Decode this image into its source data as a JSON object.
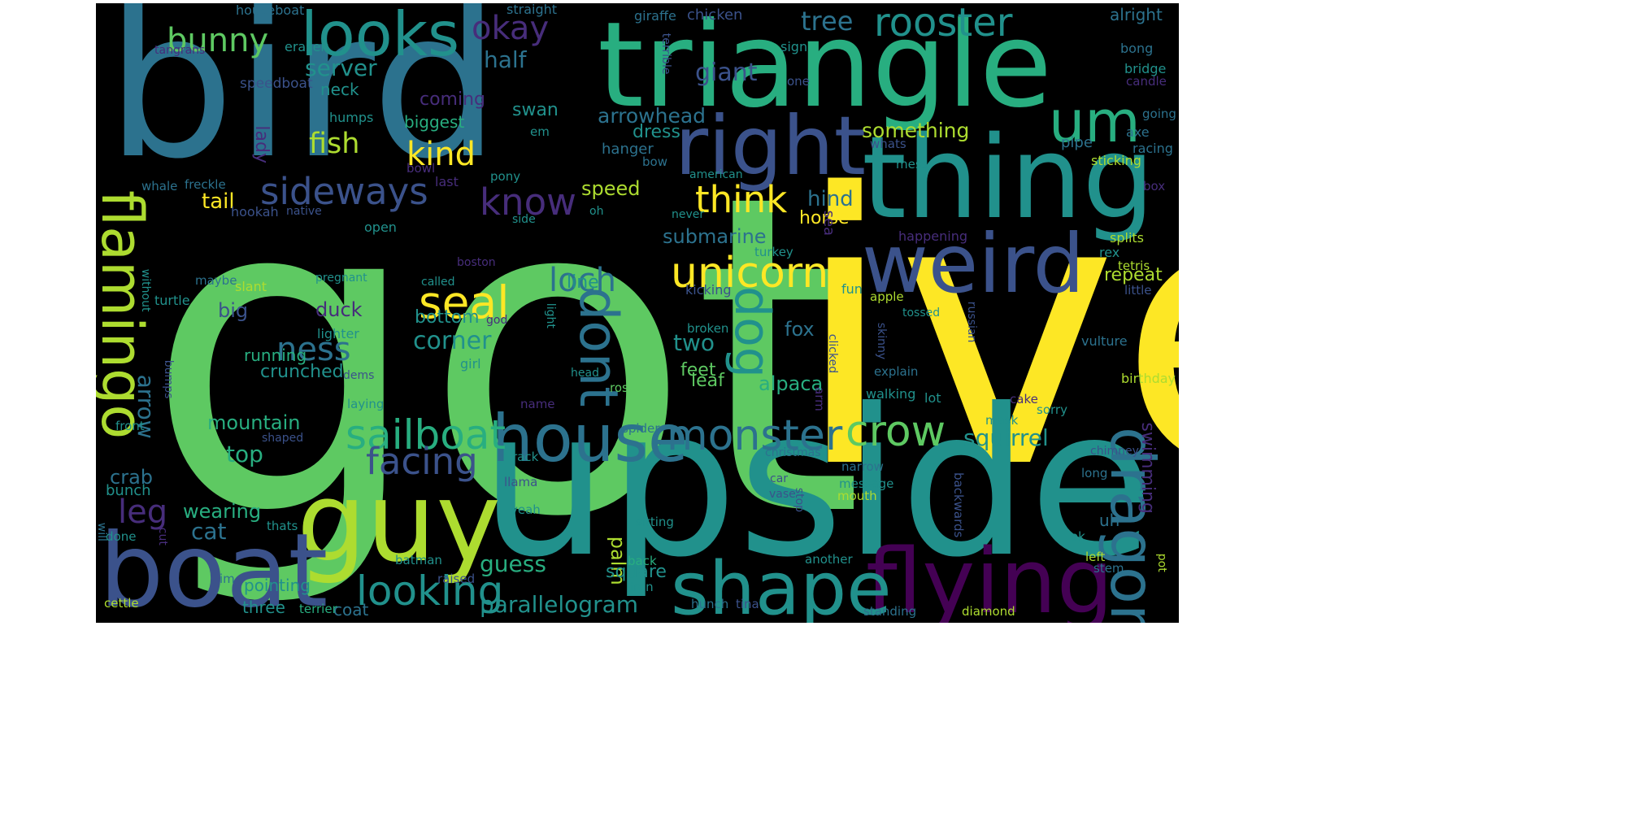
{
  "palette": [
    "#440154",
    "#472d7b",
    "#3b528b",
    "#2c728e",
    "#21918c",
    "#28ae80",
    "#5ec962",
    "#addc30",
    "#fde725"
  ],
  "words": [
    {
      "text": "got",
      "color": "#5ec962"
    },
    {
      "text": "ive",
      "color": "#fde725"
    },
    {
      "text": "bird",
      "color": "#2c728e"
    },
    {
      "text": "upside",
      "color": "#21918c"
    },
    {
      "text": "triangle",
      "color": "#28ae80"
    },
    {
      "text": "thing",
      "color": "#21918c"
    },
    {
      "text": "guy",
      "color": "#addc30"
    },
    {
      "text": "boat",
      "color": "#3b528b"
    },
    {
      "text": "weird",
      "color": "#3b528b"
    },
    {
      "text": "right",
      "color": "#3b528b"
    },
    {
      "text": "flying",
      "color": "#440154"
    },
    {
      "text": "shape",
      "color": "#21918c"
    },
    {
      "text": "dragon",
      "color": "#2c728e"
    },
    {
      "text": "house",
      "color": "#2c728e"
    },
    {
      "text": "looks",
      "color": "#21918c"
    },
    {
      "text": "um",
      "color": "#28ae80"
    },
    {
      "text": "flamingo",
      "color": "#addc30"
    },
    {
      "text": "dont",
      "color": "#2c728e"
    },
    {
      "text": "dog",
      "color": "#21918c"
    },
    {
      "text": "rooster",
      "color": "#21918c"
    },
    {
      "text": "seal",
      "color": "#fde725"
    },
    {
      "text": "unicorn",
      "color": "#fde725"
    },
    {
      "text": "monster",
      "color": "#2c728e"
    },
    {
      "text": "crow",
      "color": "#5ec962"
    },
    {
      "text": "sailboat",
      "color": "#28ae80"
    },
    {
      "text": "looking",
      "color": "#21918c"
    },
    {
      "text": "sideways",
      "color": "#3b528b"
    },
    {
      "text": "think",
      "color": "#fde725"
    },
    {
      "text": "know",
      "color": "#472d7b"
    },
    {
      "text": "kind",
      "color": "#fde725"
    },
    {
      "text": "bunny",
      "color": "#5ec962"
    },
    {
      "text": "okay",
      "color": "#472d7b"
    },
    {
      "text": "facing",
      "color": "#3b528b"
    },
    {
      "text": "loch",
      "color": "#2c728e"
    },
    {
      "text": "ness",
      "color": "#2c728e"
    },
    {
      "text": "leg",
      "color": "#472d7b"
    },
    {
      "text": "fish",
      "color": "#addc30"
    },
    {
      "text": "parallelogram",
      "color": "#21918c"
    },
    {
      "text": "squirrel",
      "color": "#21918c"
    },
    {
      "text": "tree",
      "color": "#2c728e"
    },
    {
      "text": "corner",
      "color": "#21918c"
    },
    {
      "text": "something",
      "color": "#addc30"
    },
    {
      "text": "arrowhead",
      "color": "#2c728e"
    },
    {
      "text": "giant",
      "color": "#3b528b"
    },
    {
      "text": "submarine",
      "color": "#2c728e"
    },
    {
      "text": "server",
      "color": "#21918c"
    },
    {
      "text": "half",
      "color": "#2c728e"
    },
    {
      "text": "tail",
      "color": "#fde725"
    },
    {
      "text": "arrow",
      "color": "#2c728e"
    },
    {
      "text": "speed",
      "color": "#addc30"
    },
    {
      "text": "hind",
      "color": "#2c728e"
    },
    {
      "text": "fox",
      "color": "#2c728e"
    },
    {
      "text": "two",
      "color": "#21918c"
    },
    {
      "text": "duck",
      "color": "#472d7b"
    },
    {
      "text": "big",
      "color": "#3b528b"
    },
    {
      "text": "guess",
      "color": "#28ae80"
    },
    {
      "text": "mountain",
      "color": "#28ae80"
    },
    {
      "text": "crab",
      "color": "#2c728e"
    },
    {
      "text": "cat",
      "color": "#2c728e"
    },
    {
      "text": "top",
      "color": "#28ae80"
    },
    {
      "text": "alpaca",
      "color": "#28ae80"
    },
    {
      "text": "palm",
      "color": "#addc30"
    },
    {
      "text": "swimming",
      "color": "#472d7b"
    },
    {
      "text": "coming",
      "color": "#472d7b"
    },
    {
      "text": "swan",
      "color": "#21918c"
    },
    {
      "text": "line",
      "color": "#21918c"
    },
    {
      "text": "repeat",
      "color": "#addc30"
    },
    {
      "text": "horse",
      "color": "#fde725"
    },
    {
      "text": "dress",
      "color": "#21918c"
    },
    {
      "text": "neck",
      "color": "#21918c"
    },
    {
      "text": "biggest",
      "color": "#28ae80"
    },
    {
      "text": "lady",
      "color": "#472d7b"
    },
    {
      "text": "feet",
      "color": "#5ec962"
    },
    {
      "text": "leaf",
      "color": "#5ec962"
    },
    {
      "text": "square",
      "color": "#21918c"
    },
    {
      "text": "running",
      "color": "#28ae80"
    },
    {
      "text": "crunched",
      "color": "#21918c"
    },
    {
      "text": "bottom",
      "color": "#21918c"
    },
    {
      "text": "wearing",
      "color": "#28ae80"
    },
    {
      "text": "pointing",
      "color": "#21918c"
    },
    {
      "text": "three",
      "color": "#21918c"
    },
    {
      "text": "coat",
      "color": "#2c728e"
    },
    {
      "text": "bunch",
      "color": "#21918c"
    },
    {
      "text": "uh",
      "color": "#2c728e"
    },
    {
      "text": "hanger",
      "color": "#2c728e"
    },
    {
      "text": "pipe",
      "color": "#2c728e"
    },
    {
      "text": "sea",
      "color": "#472d7b"
    },
    {
      "text": "chicken",
      "color": "#3b528b"
    },
    {
      "text": "alright",
      "color": "#2c728e"
    },
    {
      "text": "houseboat",
      "color": "#2c728e"
    },
    {
      "text": "straight",
      "color": "#2c728e"
    },
    {
      "text": "giraffe",
      "color": "#2c728e"
    },
    {
      "text": "tangrans",
      "color": "#472d7b"
    },
    {
      "text": "eraser",
      "color": "#21918c"
    },
    {
      "text": "sign",
      "color": "#21918c"
    },
    {
      "text": "bong",
      "color": "#2c728e"
    },
    {
      "text": "bridge",
      "color": "#21918c"
    },
    {
      "text": "candle",
      "color": "#472d7b"
    },
    {
      "text": "speedboat",
      "color": "#3b528b"
    },
    {
      "text": "terrible",
      "color": "#3b528b"
    },
    {
      "text": "one",
      "color": "#3b528b"
    },
    {
      "text": "going",
      "color": "#2c728e"
    },
    {
      "text": "humps",
      "color": "#21918c"
    },
    {
      "text": "em",
      "color": "#21918c"
    },
    {
      "text": "axe",
      "color": "#2c728e"
    },
    {
      "text": "whats",
      "color": "#3b528b"
    },
    {
      "text": "racing",
      "color": "#2c728e"
    },
    {
      "text": "bow",
      "color": "#2c728e"
    },
    {
      "text": "mess",
      "color": "#21918c"
    },
    {
      "text": "sticking",
      "color": "#addc30"
    },
    {
      "text": "bowl",
      "color": "#472d7b"
    },
    {
      "text": "american",
      "color": "#21918c"
    },
    {
      "text": "box",
      "color": "#472d7b"
    },
    {
      "text": "freckle",
      "color": "#2c728e"
    },
    {
      "text": "whale",
      "color": "#2c728e"
    },
    {
      "text": "last",
      "color": "#472d7b"
    },
    {
      "text": "pony",
      "color": "#21918c"
    },
    {
      "text": "hookah",
      "color": "#3b528b"
    },
    {
      "text": "native",
      "color": "#3b528b"
    },
    {
      "text": "side",
      "color": "#21918c"
    },
    {
      "text": "oh",
      "color": "#21918c"
    },
    {
      "text": "never",
      "color": "#21918c"
    },
    {
      "text": "open",
      "color": "#21918c"
    },
    {
      "text": "happening",
      "color": "#472d7b"
    },
    {
      "text": "splits",
      "color": "#addc30"
    },
    {
      "text": "turkey",
      "color": "#21918c"
    },
    {
      "text": "rex",
      "color": "#21918c"
    },
    {
      "text": "boston",
      "color": "#472d7b"
    },
    {
      "text": "tetris",
      "color": "#addc30"
    },
    {
      "text": "maybe",
      "color": "#2c728e"
    },
    {
      "text": "pregnant",
      "color": "#21918c"
    },
    {
      "text": "slant",
      "color": "#addc30"
    },
    {
      "text": "called",
      "color": "#21918c"
    },
    {
      "text": "kicking",
      "color": "#3b528b"
    },
    {
      "text": "fun",
      "color": "#21918c"
    },
    {
      "text": "little",
      "color": "#3b528b"
    },
    {
      "text": "apple",
      "color": "#addc30"
    },
    {
      "text": "without",
      "color": "#21918c"
    },
    {
      "text": "tossed",
      "color": "#21918c"
    },
    {
      "text": "russian",
      "color": "#3b528b"
    },
    {
      "text": "light",
      "color": "#21918c"
    },
    {
      "text": "turtle",
      "color": "#21918c"
    },
    {
      "text": "god",
      "color": "#472d7b"
    },
    {
      "text": "lighter",
      "color": "#21918c"
    },
    {
      "text": "broken",
      "color": "#21918c"
    },
    {
      "text": "vulture",
      "color": "#2c728e"
    },
    {
      "text": "skinny",
      "color": "#3b528b"
    },
    {
      "text": "clicked",
      "color": "#3b528b"
    },
    {
      "text": "bumps",
      "color": "#3b528b"
    },
    {
      "text": "girl",
      "color": "#21918c"
    },
    {
      "text": "head",
      "color": "#21918c"
    },
    {
      "text": "explain",
      "color": "#2c728e"
    },
    {
      "text": "birthday",
      "color": "#addc30"
    },
    {
      "text": "dems",
      "color": "#3b528b"
    },
    {
      "text": "rose",
      "color": "#5ec962"
    },
    {
      "text": "arm",
      "color": "#472d7b"
    },
    {
      "text": "walking",
      "color": "#21918c"
    },
    {
      "text": "lot",
      "color": "#21918c"
    },
    {
      "text": "laying",
      "color": "#21918c"
    },
    {
      "text": "name",
      "color": "#472d7b"
    },
    {
      "text": "cake",
      "color": "#472d7b"
    },
    {
      "text": "sorry",
      "color": "#21918c"
    },
    {
      "text": "front",
      "color": "#21918c"
    },
    {
      "text": "shaped",
      "color": "#3b528b"
    },
    {
      "text": "mask",
      "color": "#21918c"
    },
    {
      "text": "christmas",
      "color": "#2c728e"
    },
    {
      "text": "spider",
      "color": "#2c728e"
    },
    {
      "text": "chimney",
      "color": "#3b528b"
    },
    {
      "text": "rack",
      "color": "#21918c"
    },
    {
      "text": "narrow",
      "color": "#2c728e"
    },
    {
      "text": "car",
      "color": "#3b528b"
    },
    {
      "text": "long",
      "color": "#2c728e"
    },
    {
      "text": "llama",
      "color": "#3b528b"
    },
    {
      "text": "vase",
      "color": "#3b528b"
    },
    {
      "text": "message",
      "color": "#21918c"
    },
    {
      "text": "backwards",
      "color": "#3b528b"
    },
    {
      "text": "stop",
      "color": "#3b528b"
    },
    {
      "text": "mouth",
      "color": "#addc30"
    },
    {
      "text": "will",
      "color": "#2c728e"
    },
    {
      "text": "cut",
      "color": "#472d7b"
    },
    {
      "text": "done",
      "color": "#21918c"
    },
    {
      "text": "yeah",
      "color": "#21918c"
    },
    {
      "text": "sitting",
      "color": "#21918c"
    },
    {
      "text": "thats",
      "color": "#21918c"
    },
    {
      "text": "ok",
      "color": "#21918c"
    },
    {
      "text": "batman",
      "color": "#21918c"
    },
    {
      "text": "another",
      "color": "#21918c"
    },
    {
      "text": "left",
      "color": "#addc30"
    },
    {
      "text": "pot",
      "color": "#addc30"
    },
    {
      "text": "back",
      "color": "#28ae80"
    },
    {
      "text": "stem",
      "color": "#2c728e"
    },
    {
      "text": "im",
      "color": "#2c728e"
    },
    {
      "text": "raised",
      "color": "#3b528b"
    },
    {
      "text": "iron",
      "color": "#21918c"
    },
    {
      "text": "cettle",
      "color": "#addc30"
    },
    {
      "text": "hunch",
      "color": "#2c728e"
    },
    {
      "text": "tina",
      "color": "#3b528b"
    },
    {
      "text": "terrier",
      "color": "#28ae80"
    },
    {
      "text": "standing",
      "color": "#2c728e"
    },
    {
      "text": "diamond",
      "color": "#addc30"
    }
  ]
}
